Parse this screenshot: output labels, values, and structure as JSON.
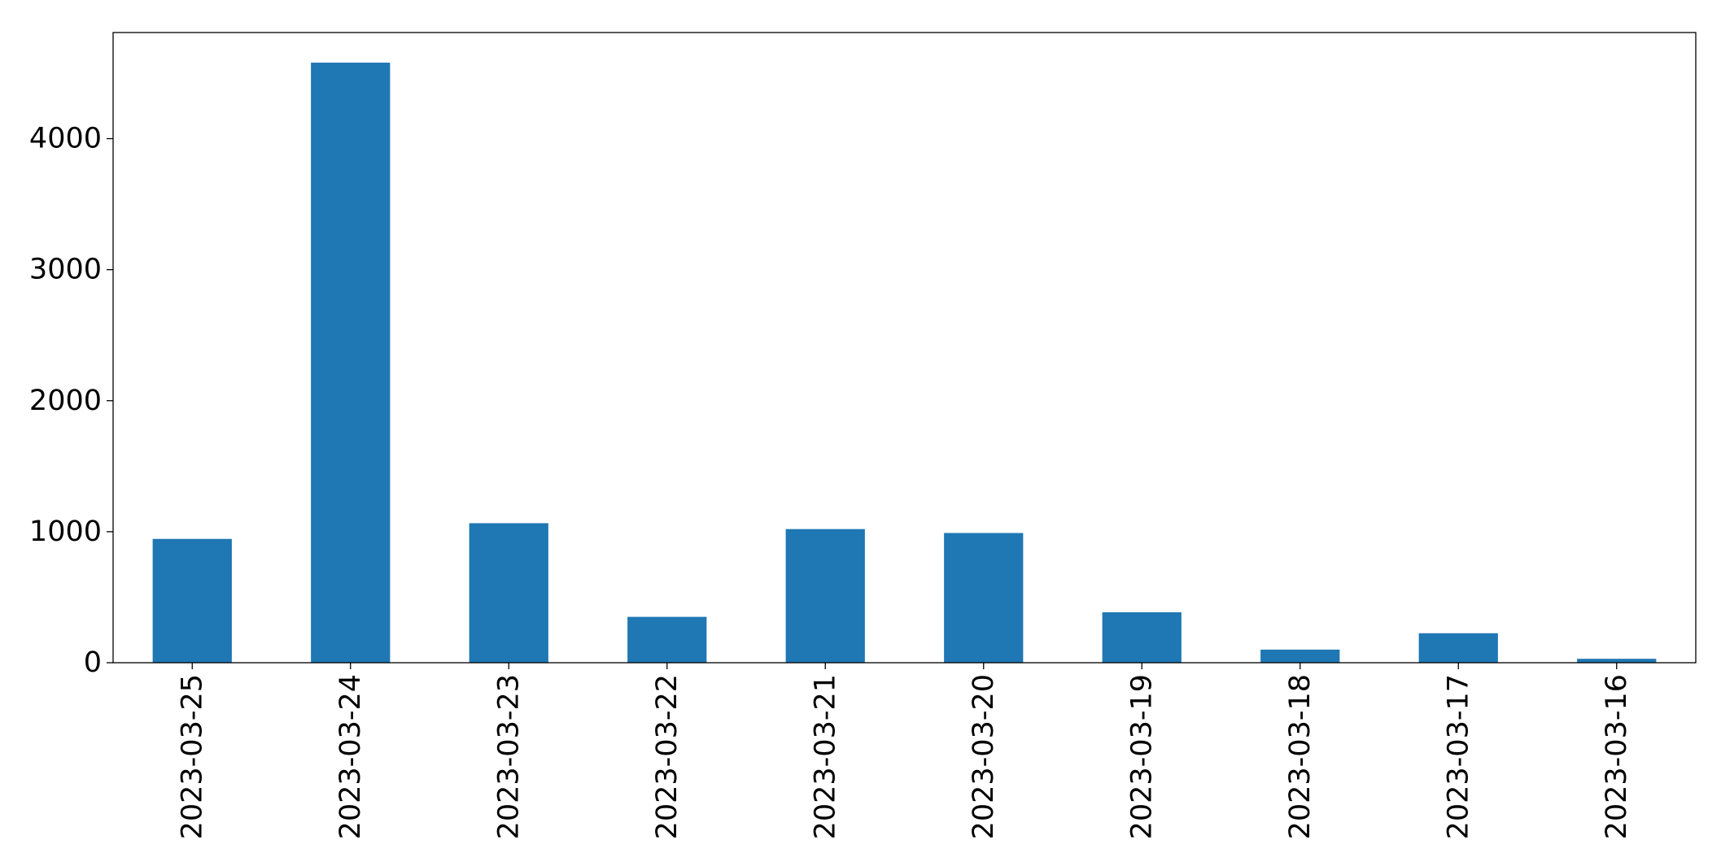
{
  "chart_data": {
    "type": "bar",
    "title": "",
    "xlabel": "",
    "ylabel": "",
    "categories": [
      "2023-03-25",
      "2023-03-24",
      "2023-03-23",
      "2023-03-22",
      "2023-03-21",
      "2023-03-20",
      "2023-03-19",
      "2023-03-18",
      "2023-03-17",
      "2023-03-16"
    ],
    "values": [
      945,
      4580,
      1065,
      350,
      1020,
      990,
      385,
      100,
      225,
      30
    ],
    "ylim": [
      0,
      4810
    ],
    "yticks": [
      0,
      1000,
      2000,
      3000,
      4000
    ],
    "ytick_labels": [
      "0",
      "1000",
      "2000",
      "3000",
      "4000"
    ],
    "grid": false,
    "legend": "none",
    "bar_color": "#1f77b4",
    "tick_label_rotation": "vertical"
  }
}
